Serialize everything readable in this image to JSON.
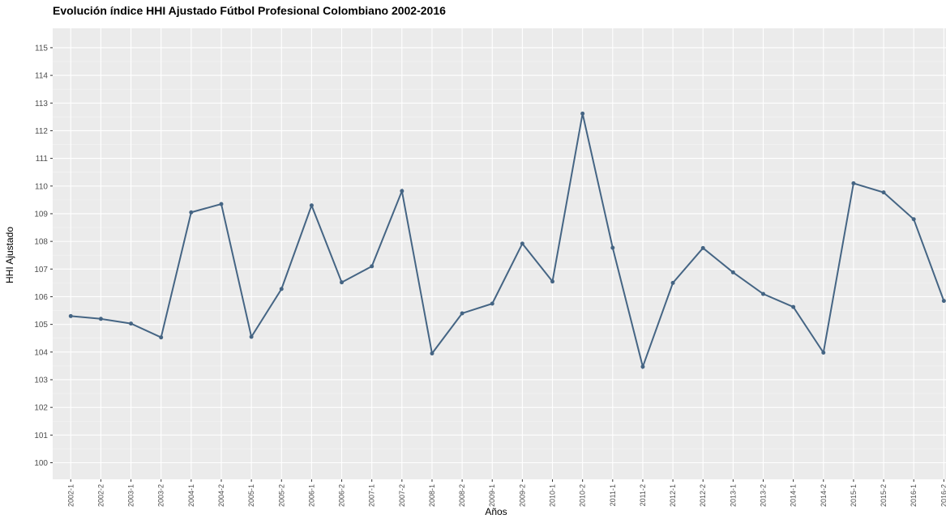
{
  "chart_data": {
    "type": "line",
    "title": "Evolución índice HHI Ajustado Fútbol Profesional Colombiano 2002-2016",
    "x_label": "Años",
    "y_label": "HHI Ajustado",
    "categories": [
      "2002-1",
      "2002-2",
      "2003-1",
      "2003-2",
      "2004-1",
      "2004-2",
      "2005-1",
      "2005-2",
      "2006-1",
      "2006-2",
      "2007-1",
      "2007-2",
      "2008-1",
      "2008-2",
      "2009-1",
      "2009-2",
      "2010-1",
      "2010-2",
      "2011-1",
      "2011-2",
      "2012-1",
      "2012-2",
      "2013-1",
      "2013-2",
      "2014-1",
      "2014-2",
      "2015-1",
      "2015-2",
      "2016-1",
      "2016-2"
    ],
    "values": [
      105.3,
      105.2,
      105.03,
      104.53,
      109.05,
      109.35,
      104.55,
      106.28,
      109.3,
      106.52,
      107.1,
      109.82,
      103.95,
      105.4,
      105.75,
      107.92,
      106.55,
      112.62,
      107.77,
      103.47,
      106.5,
      107.76,
      106.88,
      106.1,
      105.63,
      103.98,
      110.1,
      109.77,
      108.8,
      105.85
    ],
    "color": "#456584",
    "ylim": [
      99.4,
      115.7
    ],
    "yticks": [
      100,
      101,
      102,
      103,
      104,
      105,
      106,
      107,
      108,
      109,
      110,
      111,
      112,
      113,
      114,
      115
    ],
    "grid": true
  }
}
